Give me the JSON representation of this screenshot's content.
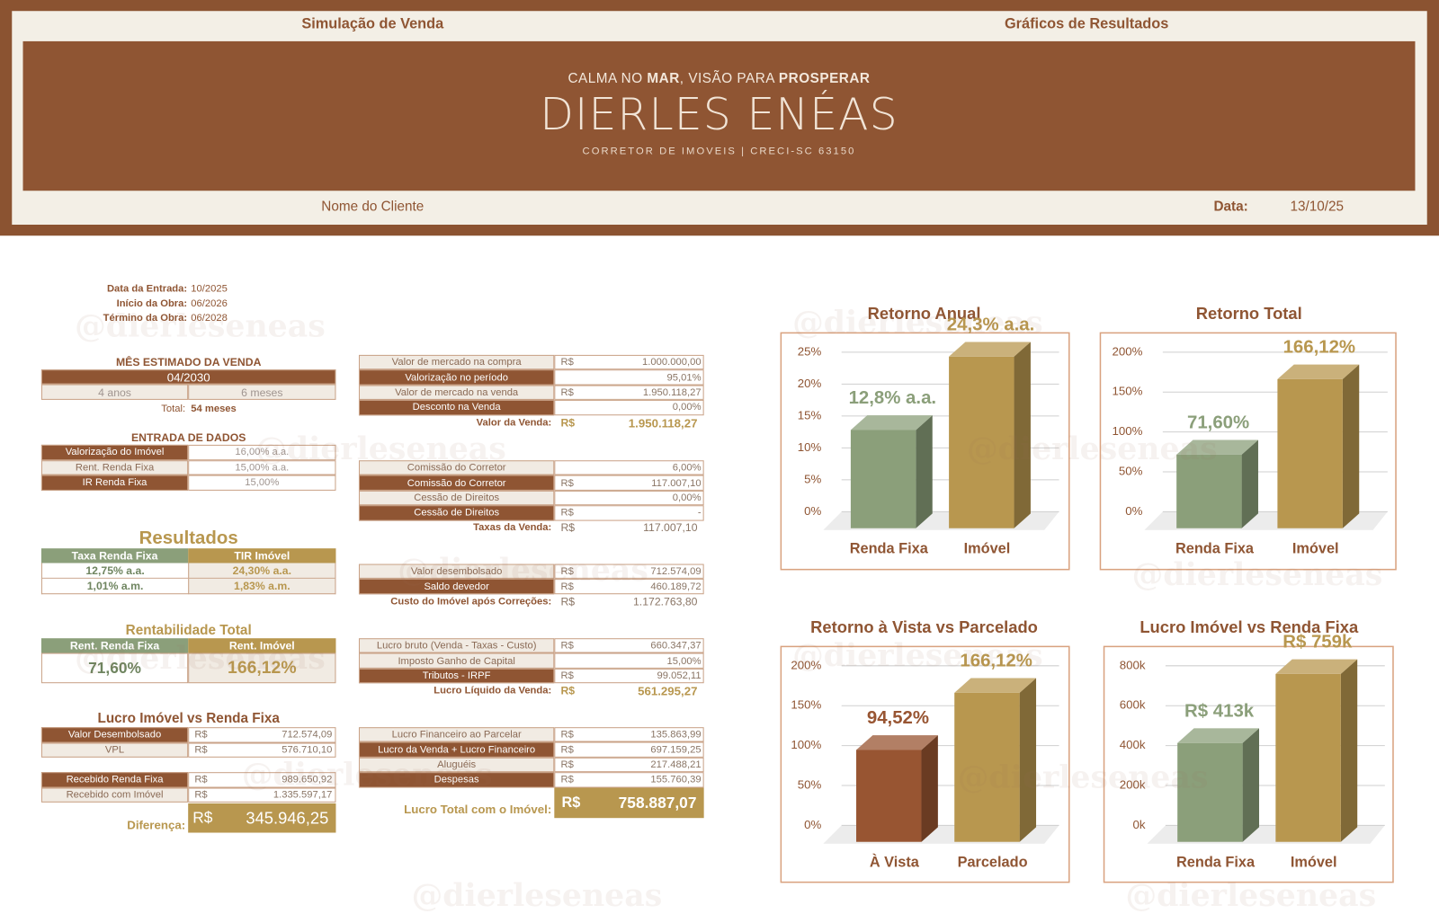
{
  "header": {
    "left_tab": "Simulação de Venda",
    "right_tab": "Gráficos de Resultados",
    "tagline": [
      "CALMA NO ",
      "MAR",
      ", VISÃO PARA ",
      "PROSPERAR"
    ],
    "brand": "DIERLES ENÉAS",
    "subtitle": "CORRETOR DE IMOVEIS | CRECI-SC 63150",
    "client": "Nome do Cliente",
    "date_label": "Data:",
    "date": "13/10/25"
  },
  "watermark": "@dierleseneas",
  "dates": [
    [
      "Data da Entrada:",
      "10/2025"
    ],
    [
      "Início da Obra:",
      "06/2026"
    ],
    [
      "Término da Obra:",
      "06/2028"
    ]
  ],
  "sale_month": {
    "title": "MÊS ESTIMADO DA VENDA",
    "value": "04/2030",
    "years": "4 anos",
    "months": "6 meses",
    "total_label": "Total:",
    "total": "54 meses"
  },
  "inputs": {
    "title": "ENTRADA DE DADOS",
    "rows": [
      [
        "Valorização do Imóvel",
        "16,00% a.a."
      ],
      [
        "Rent. Renda Fixa",
        "15,00% a.a."
      ],
      [
        "IR Renda Fixa",
        "15,00%"
      ]
    ]
  },
  "results": {
    "title": "Resultados",
    "headers": [
      "Taxa Renda Fixa",
      "TIR Imóvel"
    ],
    "rows": [
      [
        "12,75% a.a.",
        "24,30% a.a."
      ],
      [
        "1,01% a.m.",
        "1,83% a.m."
      ]
    ]
  },
  "total_return": {
    "title": "Rentabilidade Total",
    "headers": [
      "Rent. Renda Fixa",
      "Rent. Imóvel"
    ],
    "values": [
      "71,60%",
      "166,12%"
    ]
  },
  "profit": {
    "title": "Lucro Imóvel vs Renda Fixa",
    "rows": [
      {
        "label": "Valor Desembolsado",
        "currency": "R$",
        "value": "712.574,09"
      },
      {
        "label": "VPL",
        "currency": "R$",
        "value": "576.710,10"
      },
      {
        "label": "Recebido Renda Fixa",
        "currency": "R$",
        "value": "989.650,92"
      },
      {
        "label": "Recebido com Imóvel",
        "currency": "R$",
        "value": "1.335.597,17"
      }
    ],
    "diff": {
      "label": "Diferença:",
      "currency": "R$",
      "value": "345.946,25"
    }
  },
  "blocks": [
    {
      "rows": [
        {
          "label": "Valor de mercado na compra",
          "currency": "R$",
          "value": "1.000.000,00"
        },
        {
          "label": "Valorização no período",
          "value": "95,01%"
        },
        {
          "label": "Valor de mercado na venda",
          "currency": "R$",
          "value": "1.950.118,27"
        },
        {
          "label": "Desconto na Venda",
          "value": "0,00%"
        }
      ],
      "summary": {
        "label": "Valor da Venda:",
        "currency": "R$",
        "value": "1.950.118,27"
      }
    },
    {
      "rows": [
        {
          "label": "Comissão do Corretor",
          "value": "6,00%"
        },
        {
          "label": "Comissão do Corretor",
          "currency": "R$",
          "value": "117.007,10"
        },
        {
          "label": "Cessão de Direitos",
          "value": "0,00%"
        },
        {
          "label": "Cessão de Direitos",
          "currency": "R$",
          "value": "-"
        }
      ],
      "summary": {
        "label": "Taxas da Venda:",
        "currency": "R$",
        "value": "117.007,10"
      }
    },
    {
      "rows": [
        {
          "label": "Valor desembolsado",
          "currency": "R$",
          "value": "712.574,09"
        },
        {
          "label": "Saldo devedor",
          "currency": "R$",
          "value": "460.189,72"
        }
      ],
      "summary": {
        "label": "Custo do Imóvel após Correções:",
        "currency": "R$",
        "value": "1.172.763,80"
      }
    },
    {
      "rows": [
        {
          "label": "Lucro bruto (Venda - Taxas - Custo)",
          "currency": "R$",
          "value": "660.347,37"
        },
        {
          "label": "Imposto Ganho de Capital",
          "value": "15,00%"
        },
        {
          "label": "Tributos - IRPF",
          "currency": "R$",
          "value": "99.052,11"
        }
      ],
      "summary": {
        "label": "Lucro Líquido da Venda:",
        "currency": "R$",
        "value": "561.295,27"
      }
    },
    {
      "rows": [
        {
          "label": "Lucro Financeiro ao Parcelar",
          "currency": "R$",
          "value": "135.863,99"
        },
        {
          "label": "Lucro da Venda + Lucro Financeiro",
          "currency": "R$",
          "value": "697.159,25"
        },
        {
          "label": "Aluguéis",
          "currency": "R$",
          "value": "217.488,21"
        },
        {
          "label": "Despesas",
          "currency": "R$",
          "value": "155.760,39"
        }
      ],
      "summary": {
        "label": "Lucro Total com o Imóvel:",
        "currency": "R$",
        "value": "758.887,07"
      }
    }
  ],
  "charts": [
    {
      "type": "bar",
      "title": "Retorno Anual",
      "categories": [
        "Renda Fixa",
        "Imóvel"
      ],
      "values": [
        12.8,
        24.3
      ],
      "value_labels": [
        "12,8% a.a.",
        "24,3% a.a."
      ],
      "colors": [
        "#8b9f7a",
        "#b8974f"
      ],
      "ylim": [
        0,
        25
      ],
      "yticks": [
        {
          "value": 0,
          "label": "0%"
        },
        {
          "value": 5,
          "label": "5%"
        },
        {
          "value": 10,
          "label": "10%"
        },
        {
          "value": 15,
          "label": "15%"
        },
        {
          "value": 20,
          "label": "20%"
        },
        {
          "value": 25,
          "label": "25%"
        }
      ],
      "grid": true
    },
    {
      "type": "bar",
      "title": "Retorno Total",
      "categories": [
        "Renda Fixa",
        "Imóvel"
      ],
      "values": [
        71.6,
        166.12
      ],
      "value_labels": [
        "71,60%",
        "166,12%"
      ],
      "colors": [
        "#8b9f7a",
        "#b8974f"
      ],
      "ylim": [
        0,
        200
      ],
      "yticks": [
        {
          "value": 0,
          "label": "0%"
        },
        {
          "value": 50,
          "label": "50%"
        },
        {
          "value": 100,
          "label": "100%"
        },
        {
          "value": 150,
          "label": "150%"
        },
        {
          "value": 200,
          "label": "200%"
        }
      ],
      "grid": true
    },
    {
      "type": "bar",
      "title": "Retorno à Vista vs Parcelado",
      "categories": [
        "À Vista",
        "Parcelado"
      ],
      "values": [
        94.52,
        166.12
      ],
      "value_labels": [
        "94,52%",
        "166,12%"
      ],
      "colors": [
        "#985532",
        "#b8974f"
      ],
      "ylim": [
        0,
        200
      ],
      "yticks": [
        {
          "value": 0,
          "label": "0%"
        },
        {
          "value": 50,
          "label": "50%"
        },
        {
          "value": 100,
          "label": "100%"
        },
        {
          "value": 150,
          "label": "150%"
        },
        {
          "value": 200,
          "label": "200%"
        }
      ],
      "grid": true
    },
    {
      "type": "bar",
      "title": "Lucro Imóvel vs Renda Fixa",
      "categories": [
        "Renda Fixa",
        "Imóvel"
      ],
      "values": [
        412940.82,
        758887.07
      ],
      "value_labels": [
        "R$ 413k",
        "R$ 759k"
      ],
      "colors": [
        "#8b9f7a",
        "#b8974f"
      ],
      "ylim": [
        0,
        800000
      ],
      "yticks": [
        {
          "value": 0,
          "label": "0k"
        },
        {
          "value": 200000,
          "label": "200k"
        },
        {
          "value": 400000,
          "label": "400k"
        },
        {
          "value": 600000,
          "label": "600k"
        },
        {
          "value": 800000,
          "label": "800k"
        }
      ],
      "grid": true
    }
  ]
}
